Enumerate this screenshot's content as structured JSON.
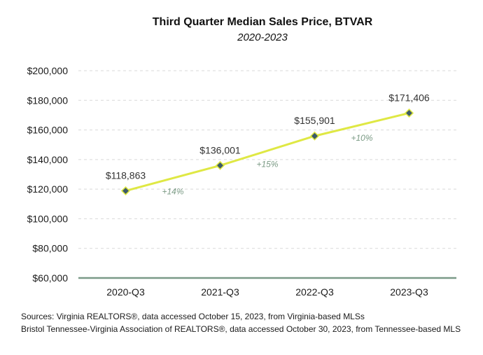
{
  "chart_data": {
    "type": "line",
    "title": "Third Quarter Median Sales Price, BTVAR",
    "subtitle": "2020-2023",
    "xlabel": "",
    "ylabel": "",
    "categories": [
      "2020-Q3",
      "2021-Q3",
      "2022-Q3",
      "2023-Q3"
    ],
    "series": [
      {
        "values": [
          118863,
          136001,
          155901,
          171406
        ],
        "data_labels": [
          "$118,863",
          "$136,001",
          "$155,901",
          "$171,406"
        ]
      }
    ],
    "growth_labels": [
      "+14%",
      "+15%",
      "+10%"
    ],
    "ylim": [
      60000,
      200000
    ],
    "yticks": [
      60000,
      80000,
      100000,
      120000,
      140000,
      160000,
      180000,
      200000
    ],
    "ytick_labels": [
      "$60,000",
      "$80,000",
      "$100,000",
      "$120,000",
      "$140,000",
      "$160,000",
      "$180,000",
      "$200,000"
    ],
    "grid": true,
    "legend": "none",
    "colors": {
      "line": "#dfe844",
      "marker_fill": "#3c5a6a",
      "growth_text": "#7a9a84",
      "baseline": "#7a9a88"
    }
  },
  "sources": {
    "line1": "Sources: Virginia REALTORS®, data accessed October 15, 2023, from Virginia-based MLSs",
    "line2": "Bristol Tennessee-Virginia Association of REALTORS®, data accessed October 30, 2023, from Tennessee-based MLS"
  }
}
